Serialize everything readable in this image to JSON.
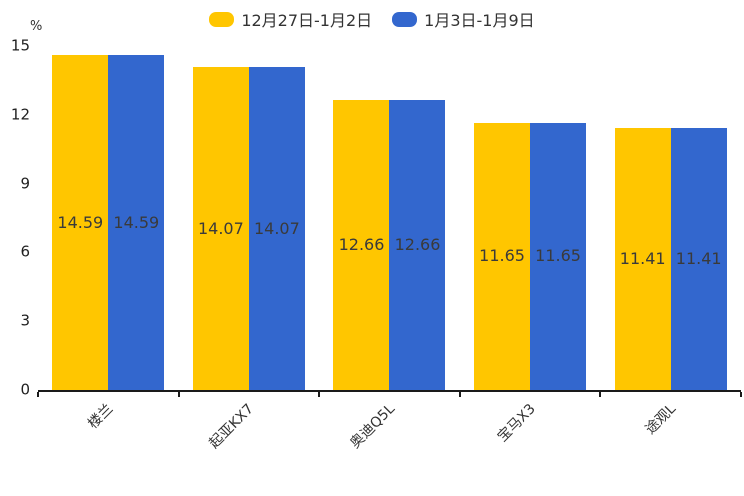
{
  "chart_data": {
    "type": "bar",
    "title": "",
    "ylabel": "%",
    "xlabel": "",
    "ylim": [
      0,
      15
    ],
    "yticks": [
      0,
      3,
      6,
      9,
      12,
      15
    ],
    "grid": false,
    "legend_position": "top",
    "value_labels_shown": true,
    "categories": [
      "楼兰",
      "起亚KX7",
      "奥迪Q5L",
      "宝马X3",
      "途观L"
    ],
    "series": [
      {
        "name": "12月27日-1月2日",
        "color": "#FFC600",
        "values": [
          14.59,
          14.07,
          12.66,
          11.65,
          11.41
        ]
      },
      {
        "name": "1月3日-1月9日",
        "color": "#3367CE",
        "values": [
          14.59,
          14.07,
          12.66,
          11.65,
          11.41
        ]
      }
    ],
    "colors": {
      "axis": "#1a1a1a",
      "tick_label": "#1f1f1f",
      "value_label": "#3a3a3a",
      "category_label": "#333333",
      "background": "#ffffff"
    }
  }
}
